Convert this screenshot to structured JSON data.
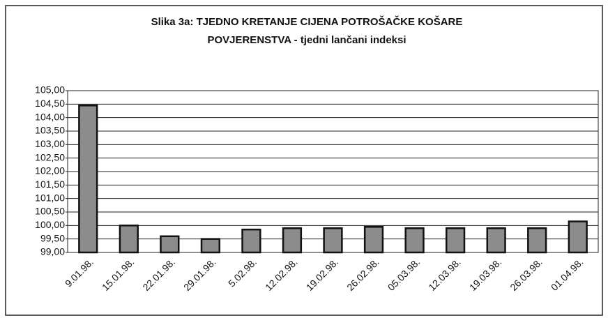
{
  "chart_data": {
    "type": "bar",
    "title": [
      "Slika 3a: TJEDNO KRETANJE CIJENA POTROŠAČKE KOŠARE",
      "POVJERENSTVA - tjedni lančani indeksi"
    ],
    "categories": [
      "9.01.98.",
      "15.01.98.",
      "22.01.98.",
      "29.01.98.",
      "5.02.98.",
      "12.02.98.",
      "19.02.98.",
      "26.02.98.",
      "05.03.98.",
      "12.03.98.",
      "19.03.98.",
      "26.03.98.",
      "01.04.98."
    ],
    "values": [
      104.45,
      100.0,
      99.6,
      99.5,
      99.85,
      99.9,
      99.9,
      99.95,
      99.9,
      99.9,
      99.9,
      99.9,
      100.15
    ],
    "color": "#8c8c8c",
    "ylim": [
      99,
      105
    ],
    "yticks": [
      {
        "value": 99,
        "label": "99,00"
      },
      {
        "value": 99.5,
        "label": "99,50"
      },
      {
        "value": 100,
        "label": "100,00"
      },
      {
        "value": 100.5,
        "label": "100,50"
      },
      {
        "value": 101,
        "label": "101,00"
      },
      {
        "value": 101.5,
        "label": "101,50"
      },
      {
        "value": 102,
        "label": "102,00"
      },
      {
        "value": 102.5,
        "label": "102,50"
      },
      {
        "value": 103,
        "label": "103,00"
      },
      {
        "value": 103.5,
        "label": "103,50"
      },
      {
        "value": 104,
        "label": "104,00"
      },
      {
        "value": 104.5,
        "label": "104,50"
      },
      {
        "value": 105,
        "label": "105,00"
      }
    ],
    "grid": true
  }
}
